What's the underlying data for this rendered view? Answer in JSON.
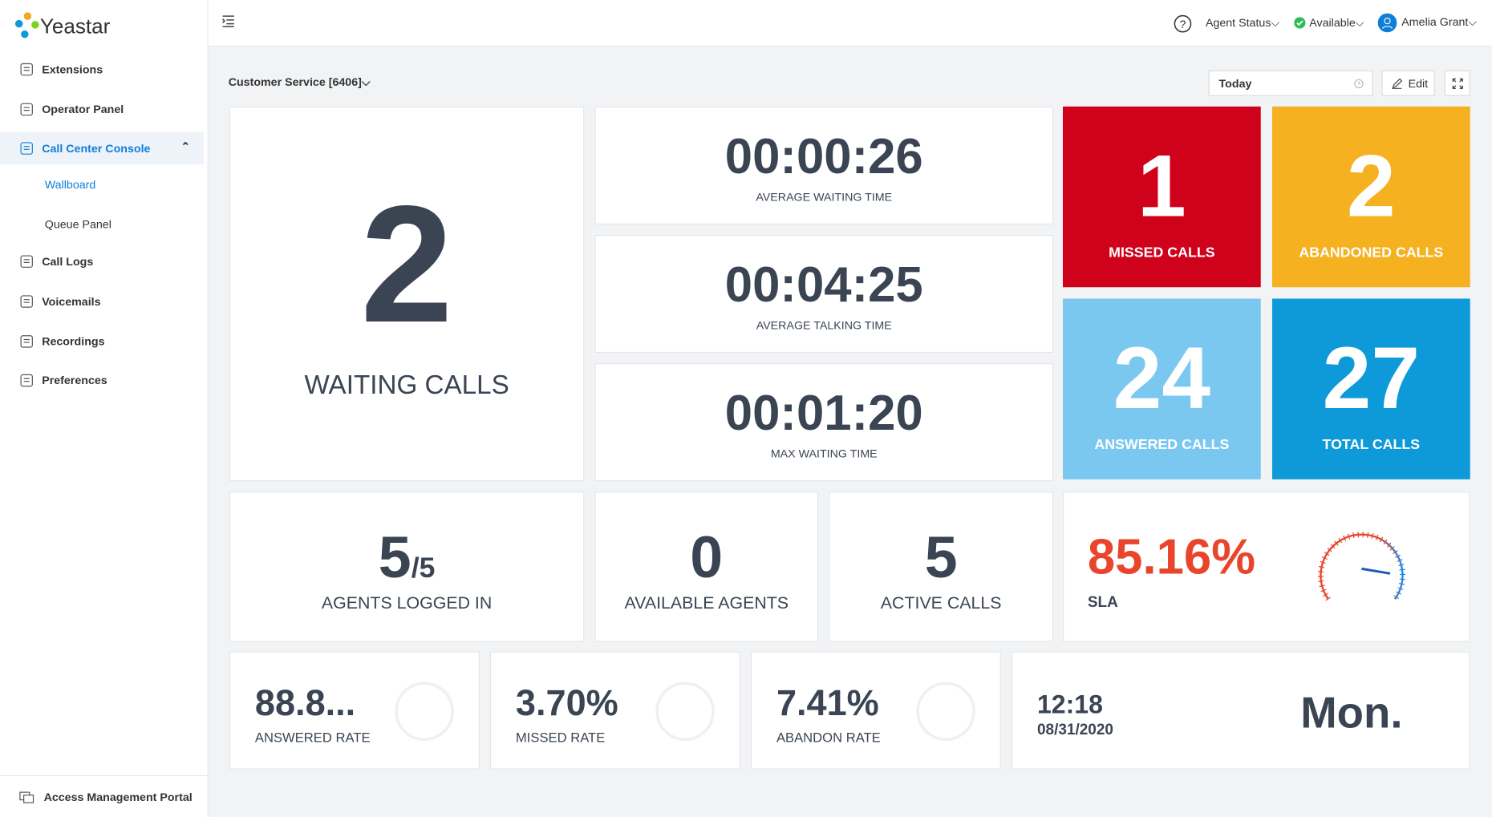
{
  "sidebar": {
    "brand": "Yeastar",
    "menu": [
      {
        "label": "Extensions"
      },
      {
        "label": "Operator Panel"
      },
      {
        "label": "Call Center Console"
      },
      {
        "label": "Call Logs"
      },
      {
        "label": "Voicemails"
      },
      {
        "label": "Recordings"
      },
      {
        "label": "Preferences"
      }
    ],
    "submenu": [
      "Wallboard",
      "Queue Panel"
    ],
    "footer": "Access Management Portal"
  },
  "header": {
    "agent_status": "Agent Status",
    "status": "Available",
    "user": "Amelia Grant"
  },
  "toolbar": {
    "queue": "Customer Service [6406]",
    "date_range": "Today",
    "edit": "Edit"
  },
  "tiles": {
    "waiting_calls": {
      "value": "2",
      "label": "WAITING CALLS"
    },
    "times": [
      {
        "value": "00:00:26",
        "label": "AVERAGE WAITING TIME"
      },
      {
        "value": "00:04:25",
        "label": "AVERAGE TALKING TIME"
      },
      {
        "value": "00:01:20",
        "label": "MAX WAITING TIME"
      }
    ],
    "counts": [
      {
        "value": "1",
        "label": "MISSED CALLS",
        "color": "#d0021b"
      },
      {
        "value": "2",
        "label": "ABANDONED CALLS",
        "color": "#f5b11f"
      },
      {
        "value": "24",
        "label": "ANSWERED CALLS",
        "color": "#7ac8f0"
      },
      {
        "value": "27",
        "label": "TOTAL CALLS",
        "color": "#0e9ad8"
      }
    ],
    "agents_logged_in": {
      "value": "5",
      "total": "/5",
      "label": "AGENTS LOGGED IN"
    },
    "available_agents": {
      "value": "0",
      "label": "AVAILABLE AGENTS"
    },
    "active_calls": {
      "value": "5",
      "label": "ACTIVE CALLS"
    },
    "sla": {
      "value": "85.16%",
      "label": "SLA"
    },
    "rates": [
      {
        "value": "88.8...",
        "label": "ANSWERED RATE"
      },
      {
        "value": "3.70%",
        "label": "MISSED RATE"
      },
      {
        "value": "7.41%",
        "label": "ABANDON RATE"
      }
    ],
    "clock": {
      "time": "12:18",
      "date": "08/31/2020",
      "day": "Mon."
    }
  }
}
